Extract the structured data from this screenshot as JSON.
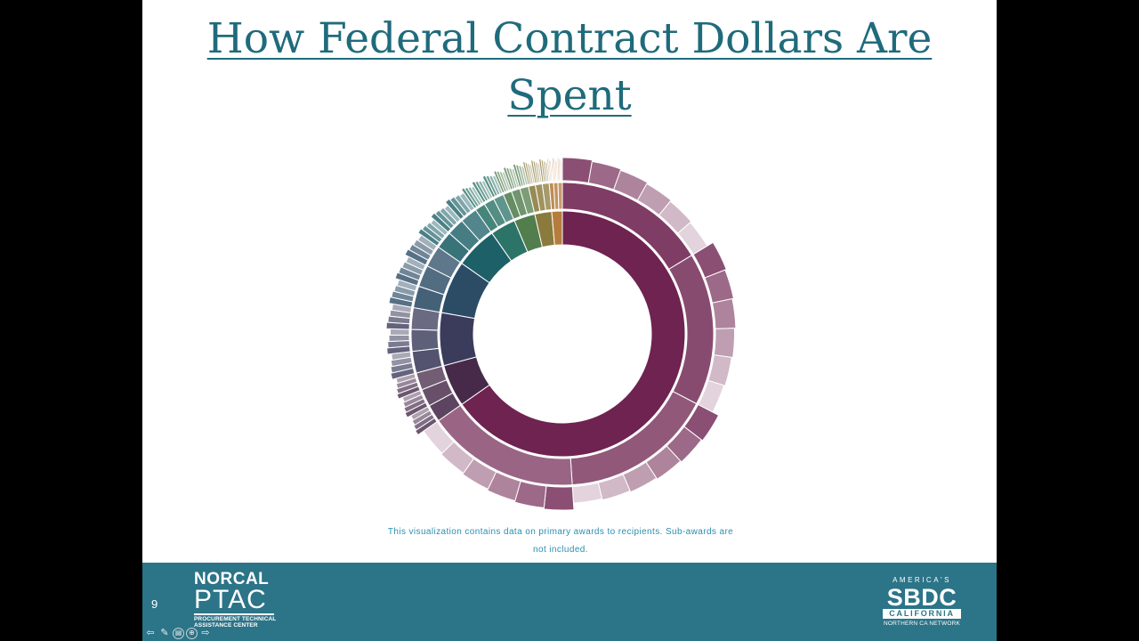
{
  "slide": {
    "title": "How Federal Contract Dollars Are Spent",
    "caption": "This visualization contains data on primary awards to recipients. Sub-awards are not included.",
    "number": "9"
  },
  "logos": {
    "ptac": {
      "line1": "NORCAL",
      "line2": "PTAC",
      "line3": "PROCUREMENT TECHNICAL",
      "line4": "ASSISTANCE CENTER"
    },
    "sbdc": {
      "line1": "AMERICA'S",
      "line2": "SBDC",
      "line3": "CALIFORNIA",
      "line4": "NORTHERN CA NETWORK"
    }
  },
  "colors": {
    "title": "#1f6b7c",
    "footer": "#2c7488",
    "caption": "#2b8fb0"
  },
  "nav_controls": [
    {
      "name": "previous-arrow-icon",
      "glyph": "⇦"
    },
    {
      "name": "pen-icon",
      "glyph": "✎"
    },
    {
      "name": "slide-menu-icon",
      "glyph": "▤"
    },
    {
      "name": "zoom-icon",
      "glyph": "⊕"
    },
    {
      "name": "next-arrow-icon",
      "glyph": "⇨"
    }
  ],
  "chart_data": {
    "type": "sunburst",
    "title": "",
    "inner_ring_colors": [
      "#6e2350",
      "#472a4a",
      "#3b3c5c",
      "#2c4c66",
      "#1d6068",
      "#2d7468",
      "#527e4e",
      "#8a7a3c",
      "#b67c3c"
    ],
    "inner_ring_shares_deg": [
      235,
      20,
      25,
      25,
      20,
      12,
      10,
      8,
      5
    ],
    "rings": 3
  }
}
